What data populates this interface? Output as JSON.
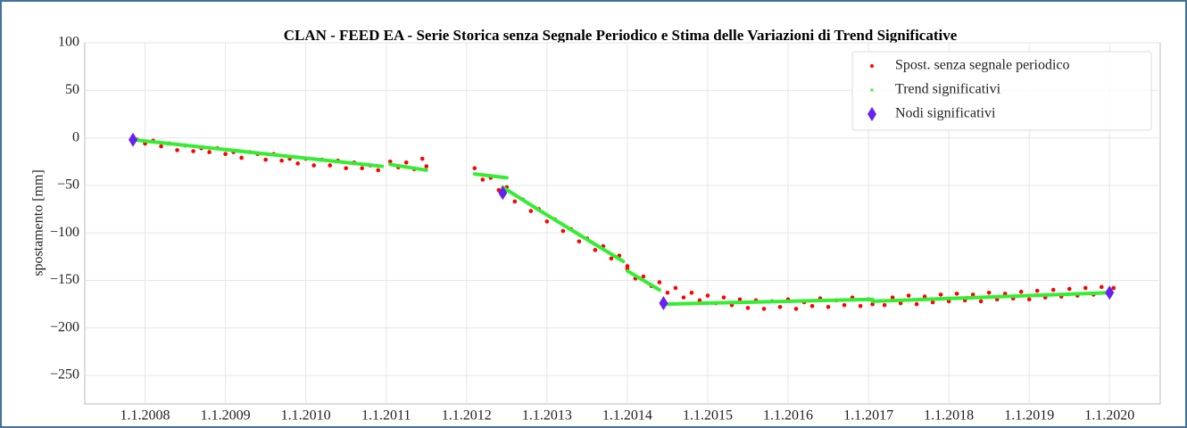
{
  "chart_data": {
    "type": "scatter",
    "title": "CLAN - FEED EA - Serie Storica senza Segnale Periodico e Stima delle Variazioni di Trend Significative",
    "ylabel": "spostamento [mm]",
    "xlim": [
      2007.25,
      2020.63
    ],
    "ylim": [
      -280,
      100
    ],
    "xticks": [
      {
        "value": 2008,
        "label": "1.1.2008"
      },
      {
        "value": 2009,
        "label": "1.1.2009"
      },
      {
        "value": 2010,
        "label": "1.1.2010"
      },
      {
        "value": 2011,
        "label": "1.1.2011"
      },
      {
        "value": 2012,
        "label": "1.1.2012"
      },
      {
        "value": 2013,
        "label": "1.1.2013"
      },
      {
        "value": 2014,
        "label": "1.1.2014"
      },
      {
        "value": 2015,
        "label": "1.1.2015"
      },
      {
        "value": 2016,
        "label": "1.1.2016"
      },
      {
        "value": 2017,
        "label": "1.1.2017"
      },
      {
        "value": 2018,
        "label": "1.1.2018"
      },
      {
        "value": 2019,
        "label": "1.1.2019"
      },
      {
        "value": 2020,
        "label": "1.1.2020"
      }
    ],
    "yticks": [
      100,
      50,
      0,
      {
        "value": -50,
        "label": "−50"
      },
      {
        "value": -100,
        "label": "−100"
      },
      {
        "value": -150,
        "label": "−150"
      },
      {
        "value": -200,
        "label": "−200"
      },
      {
        "value": -250,
        "label": "−250"
      }
    ],
    "grid": true,
    "legend": "upper right",
    "series": [
      {
        "name": "Spost. senza segnale periodico",
        "color": "#ff0000",
        "marker": "dot",
        "x": [
          2007.9,
          2008.0,
          2008.1,
          2008.2,
          2008.3,
          2008.4,
          2008.5,
          2008.6,
          2008.7,
          2008.8,
          2008.9,
          2009.0,
          2009.1,
          2009.2,
          2009.3,
          2009.4,
          2009.5,
          2009.6,
          2009.7,
          2009.8,
          2009.9,
          2010.0,
          2010.1,
          2010.2,
          2010.3,
          2010.4,
          2010.5,
          2010.6,
          2010.7,
          2010.8,
          2010.9,
          2011.05,
          2011.15,
          2011.25,
          2011.35,
          2011.45,
          2011.5,
          2012.1,
          2012.2,
          2012.3,
          2012.4,
          2012.5,
          2012.6,
          2012.7,
          2012.8,
          2012.9,
          2013.0,
          2013.1,
          2013.2,
          2013.3,
          2013.4,
          2013.5,
          2013.6,
          2013.7,
          2013.8,
          2013.9,
          2014.0,
          2014.0,
          2014.1,
          2014.2,
          2014.3,
          2014.4,
          2014.5,
          2014.6,
          2014.7,
          2014.8,
          2014.9,
          2015.0,
          2015.1,
          2015.2,
          2015.3,
          2015.4,
          2015.5,
          2015.6,
          2015.7,
          2015.8,
          2015.9,
          2016.0,
          2016.1,
          2016.2,
          2016.3,
          2016.4,
          2016.5,
          2016.6,
          2016.7,
          2016.8,
          2016.9,
          2017.0,
          2017.05,
          2017.2,
          2017.3,
          2017.4,
          2017.5,
          2017.6,
          2017.7,
          2017.8,
          2017.9,
          2018.0,
          2018.1,
          2018.2,
          2018.3,
          2018.4,
          2018.5,
          2018.6,
          2018.7,
          2018.8,
          2018.9,
          2019.0,
          2019.1,
          2019.2,
          2019.3,
          2019.4,
          2019.5,
          2019.6,
          2019.7,
          2019.8,
          2019.9,
          2020.0,
          2020.05
        ],
        "values": [
          -2,
          -6,
          -3,
          -9,
          -6,
          -13,
          -8,
          -14,
          -11,
          -15,
          -11,
          -17,
          -15,
          -21,
          -15,
          -17,
          -23,
          -17,
          -24,
          -22,
          -27,
          -22,
          -29,
          -23,
          -29,
          -24,
          -32,
          -26,
          -32,
          -29,
          -34,
          -25,
          -31,
          -26,
          -33,
          -22,
          -30,
          -32,
          -44,
          -42,
          -55,
          -52,
          -67,
          -65,
          -77,
          -75,
          -88,
          -86,
          -98,
          -96,
          -109,
          -106,
          -118,
          -114,
          -127,
          -124,
          -135,
          -138,
          -148,
          -146,
          -156,
          -152,
          -163,
          -158,
          -168,
          -163,
          -171,
          -166,
          -174,
          -168,
          -176,
          -170,
          -179,
          -171,
          -180,
          -172,
          -178,
          -170,
          -180,
          -173,
          -177,
          -169,
          -178,
          -171,
          -176,
          -168,
          -177,
          -170,
          -175,
          -176,
          -168,
          -174,
          -166,
          -175,
          -167,
          -173,
          -165,
          -172,
          -164,
          -171,
          -165,
          -172,
          -163,
          -170,
          -164,
          -169,
          -162,
          -170,
          -161,
          -168,
          -160,
          -167,
          -159,
          -166,
          -158,
          -165,
          -157,
          -162,
          -158
        ]
      },
      {
        "name": "Trend significativi",
        "color": "#33ee33",
        "marker": "line",
        "x": [
          2007.85,
          2010.95,
          null,
          2011.05,
          2011.5,
          null,
          2012.1,
          2012.5,
          null,
          2012.45,
          2012.9,
          2013.5,
          2013.95,
          null,
          2014.0,
          2014.4,
          null,
          2014.45,
          2017.05,
          null,
          2017.05,
          2020.0
        ],
        "values": [
          -2,
          -30,
          null,
          -28,
          -34,
          null,
          -38,
          -42,
          null,
          -52,
          -76,
          -107,
          -130,
          null,
          -140,
          -160,
          null,
          -175,
          -170,
          null,
          -172,
          -163
        ]
      },
      {
        "name": "Nodi significativi",
        "color": "#6622ee",
        "marker": "diamond",
        "x": [
          2007.85,
          2012.45,
          2014.45,
          2020.0
        ],
        "values": [
          -2,
          -58,
          -174,
          -163
        ]
      }
    ]
  }
}
